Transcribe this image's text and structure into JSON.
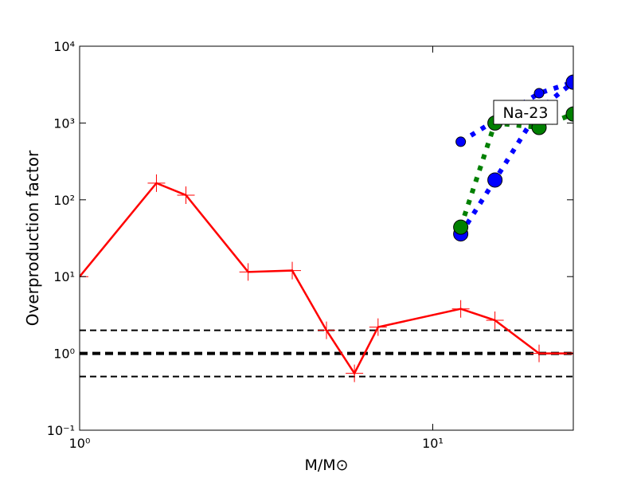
{
  "chart_data": {
    "type": "line",
    "xlabel": "M/M⊙",
    "ylabel": "Overproduction factor",
    "xscale": "log",
    "yscale": "log",
    "xlim": [
      1,
      25
    ],
    "ylim": [
      0.1,
      10000
    ],
    "xticks": [
      {
        "value": 1,
        "label": "10⁰"
      },
      {
        "value": 10,
        "label": "10¹"
      }
    ],
    "yticks": [
      {
        "value": 0.1,
        "label": "10⁻¹"
      },
      {
        "value": 1,
        "label": "10⁰"
      },
      {
        "value": 10,
        "label": "10¹"
      },
      {
        "value": 100,
        "label": "10²"
      },
      {
        "value": 1000,
        "label": "10³"
      },
      {
        "value": 10000,
        "label": "10⁴"
      }
    ],
    "hlines": [
      2,
      1,
      0.5
    ],
    "annotation": "Na-23",
    "series": [
      {
        "color": "#ff0000",
        "marker": "plus",
        "x": [
          1,
          1.65,
          2,
          3,
          4,
          5,
          6,
          7,
          12,
          15,
          20,
          25
        ],
        "values": [
          10,
          165,
          115,
          11.5,
          12,
          2,
          0.55,
          2.2,
          3.8,
          2.7,
          1.0,
          1.0
        ]
      },
      {
        "color": "#0000ff",
        "marker": "circle-small",
        "x": [
          12,
          20,
          25
        ],
        "values": [
          570,
          2440,
          3400
        ]
      },
      {
        "color": "#0000ff",
        "marker": "circle-large",
        "x": [
          12,
          15,
          20,
          25
        ],
        "values": [
          36,
          181,
          1500,
          3400
        ]
      },
      {
        "color": "#008000",
        "marker": "circle-large",
        "x": [
          12,
          15,
          20,
          25
        ],
        "values": [
          44,
          1000,
          875,
          1310
        ]
      }
    ]
  }
}
